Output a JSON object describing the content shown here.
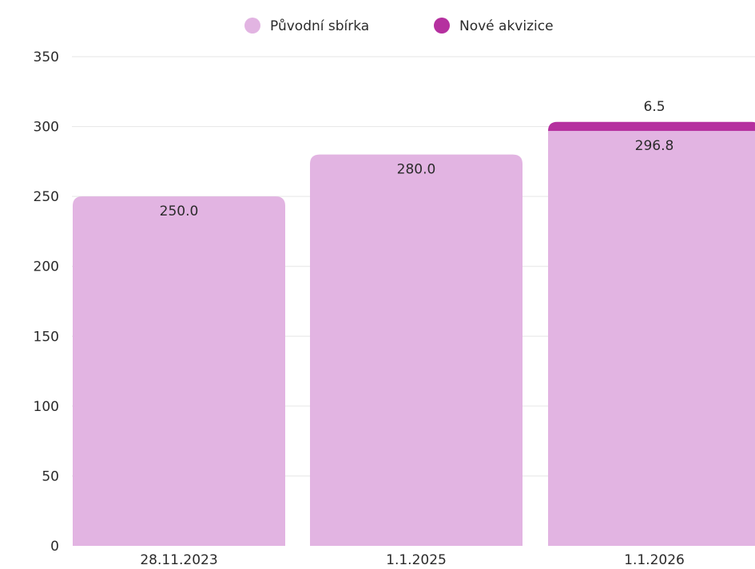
{
  "chart_data": {
    "type": "bar",
    "stacked": true,
    "categories": [
      "28.11.2023",
      "1.1.2025",
      "1.1.2026"
    ],
    "series": [
      {
        "name": "Původní sbírka",
        "values": [
          250.0,
          280.0,
          296.8
        ],
        "labels": [
          "250.0",
          "280.0",
          "296.8"
        ],
        "color": "#e2b4e2"
      },
      {
        "name": "Nové akvizice",
        "values": [
          0,
          0,
          6.5
        ],
        "labels": [
          "",
          "",
          "6.5"
        ],
        "color": "#b5309f"
      }
    ],
    "ylim": [
      0,
      350
    ],
    "yticks": [
      0,
      50,
      100,
      150,
      200,
      250,
      300,
      350
    ],
    "ytick_labels": [
      "0",
      "50",
      "100",
      "150",
      "200",
      "250",
      "300",
      "350"
    ],
    "grid": true,
    "legend_position": "top"
  }
}
